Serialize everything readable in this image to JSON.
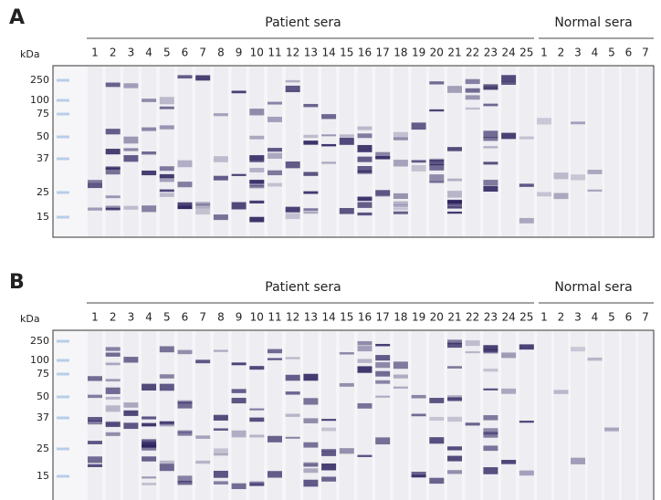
{
  "panels": [
    {
      "label": "A",
      "group_labels": [
        "Patient sera",
        "Normal sera"
      ],
      "unit": "kDa",
      "patient_lanes": [
        "1",
        "2",
        "3",
        "4",
        "5",
        "6",
        "7",
        "8",
        "9",
        "10",
        "11",
        "12",
        "13",
        "14",
        "15",
        "16",
        "17",
        "18",
        "19",
        "20",
        "21",
        "22",
        "23",
        "24",
        "25"
      ],
      "normal_lanes": [
        "1",
        "2",
        "3",
        "4",
        "5",
        "6",
        "7"
      ],
      "markers": [
        250,
        100,
        75,
        50,
        37,
        25,
        15
      ]
    },
    {
      "label": "B",
      "group_labels": [
        "Patient sera",
        "Normal sera"
      ],
      "unit": "kDa",
      "patient_lanes": [
        "1",
        "2",
        "3",
        "4",
        "5",
        "6",
        "7",
        "8",
        "9",
        "10",
        "11",
        "12",
        "13",
        "14",
        "15",
        "16",
        "17",
        "18",
        "19",
        "20",
        "21",
        "22",
        "23",
        "24",
        "25"
      ],
      "normal_lanes": [
        "1",
        "2",
        "3",
        "4",
        "5",
        "6",
        "7"
      ],
      "markers": [
        250,
        100,
        75,
        50,
        37,
        25,
        15
      ]
    }
  ]
}
